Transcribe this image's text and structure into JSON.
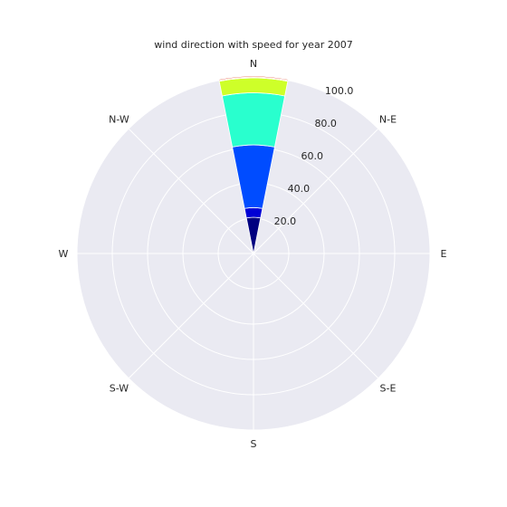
{
  "chart_data": {
    "type": "bar",
    "subtype": "polar-stacked-wind-rose",
    "title": "wind direction with speed for year 2007",
    "direction_labels": [
      "N",
      "N-E",
      "E",
      "S-E",
      "S",
      "S-W",
      "W",
      "N-W"
    ],
    "direction_angles_deg": [
      0,
      45,
      90,
      135,
      180,
      225,
      270,
      315
    ],
    "radial_ticks": [
      20.0,
      40.0,
      60.0,
      80.0,
      100.0
    ],
    "radial_tick_labels": [
      "20.0",
      "40.0",
      "60.0",
      "80.0",
      "100.0"
    ],
    "rlim": [
      0,
      100
    ],
    "grid": true,
    "background_color": "#eaeaf2",
    "grid_color": "#ffffff",
    "bars": [
      {
        "direction": "N",
        "center_deg": 0,
        "width_deg": 22.5,
        "segments": [
          {
            "value": 20.5,
            "color": "#000080"
          },
          {
            "value": 5.5,
            "color": "#0000d5"
          },
          {
            "value": 35.5,
            "color": "#004cff"
          },
          {
            "value": 29.5,
            "color": "#29ffce"
          },
          {
            "value": 8.5,
            "color": "#ceff29"
          },
          {
            "value": 0.5,
            "color": "#ff9a00"
          },
          {
            "value": 0.5,
            "color": "#d61d00"
          }
        ]
      }
    ]
  }
}
